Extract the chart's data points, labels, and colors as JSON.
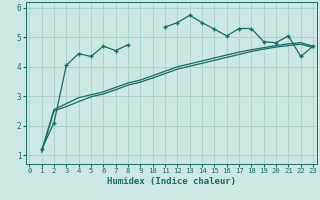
{
  "xlabel": "Humidex (Indice chaleur)",
  "background_color": "#cce8e4",
  "grid_color": "#aad0cc",
  "line_color": "#1a6b60",
  "x_values": [
    0,
    1,
    2,
    3,
    4,
    5,
    6,
    7,
    8,
    9,
    10,
    11,
    12,
    13,
    14,
    15,
    16,
    17,
    18,
    19,
    20,
    21,
    22,
    23
  ],
  "series1": [
    null,
    1.2,
    2.1,
    4.05,
    4.45,
    4.35,
    4.7,
    4.55,
    4.75,
    null,
    null,
    null,
    null,
    null,
    null,
    null,
    null,
    null,
    null,
    null,
    null,
    null,
    null,
    null
  ],
  "series2": [
    null,
    null,
    null,
    null,
    null,
    null,
    null,
    null,
    null,
    null,
    null,
    5.35,
    5.5,
    5.75,
    5.5,
    5.28,
    5.05,
    5.3,
    5.3,
    4.85,
    4.82,
    5.05,
    4.35,
    4.7
  ],
  "series3": [
    null,
    1.15,
    2.55,
    2.75,
    2.95,
    3.05,
    3.15,
    3.3,
    3.45,
    3.55,
    3.7,
    3.85,
    4.0,
    4.1,
    4.2,
    4.3,
    4.4,
    4.5,
    4.58,
    4.65,
    4.72,
    4.78,
    4.82,
    4.7
  ],
  "series4": [
    null,
    1.1,
    2.5,
    2.65,
    2.82,
    2.98,
    3.08,
    3.22,
    3.38,
    3.48,
    3.62,
    3.77,
    3.92,
    4.02,
    4.12,
    4.22,
    4.32,
    4.42,
    4.52,
    4.6,
    4.67,
    4.72,
    4.77,
    4.65
  ],
  "ylim": [
    0.7,
    6.2
  ],
  "xlim": [
    -0.3,
    23.3
  ],
  "yticks": [
    1,
    2,
    3,
    4,
    5,
    6
  ],
  "xticks": [
    0,
    1,
    2,
    3,
    4,
    5,
    6,
    7,
    8,
    9,
    10,
    11,
    12,
    13,
    14,
    15,
    16,
    17,
    18,
    19,
    20,
    21,
    22,
    23
  ],
  "tick_fontsize": 5.2,
  "label_fontsize": 6.5
}
